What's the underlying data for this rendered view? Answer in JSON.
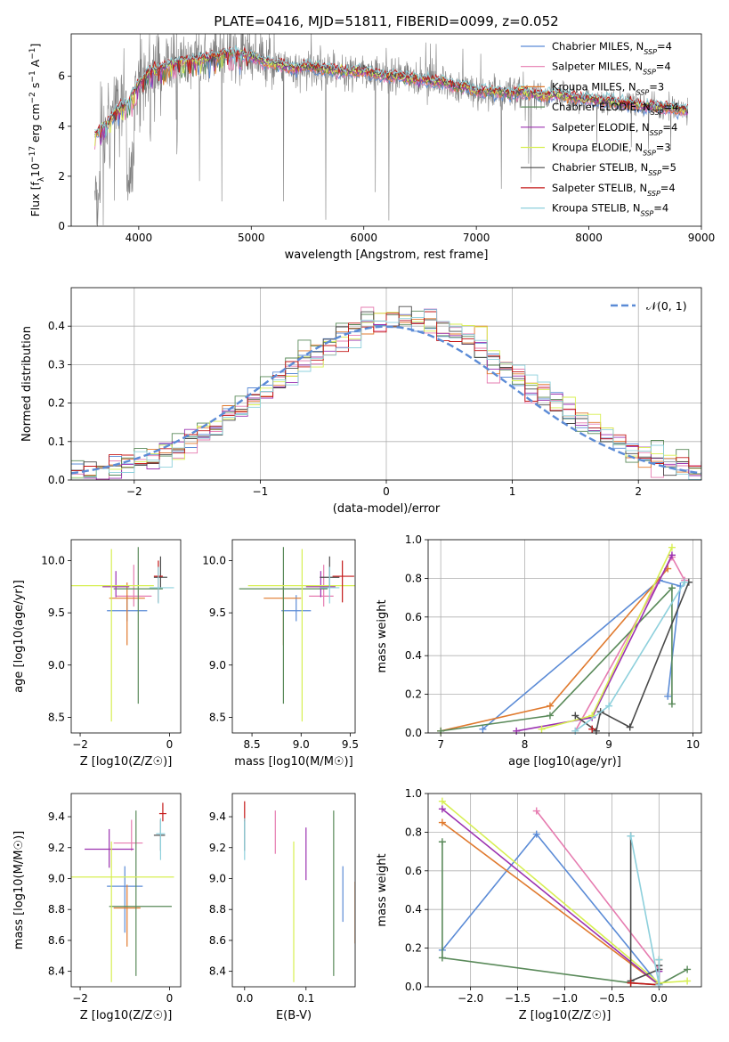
{
  "figure_title": "PLATE=0416, MJD=51811, FIBERID=0099, z=0.052",
  "colors": {
    "Chabrier MILES": "#5b8bd6",
    "Salpeter MILES": "#e67cb0",
    "Kroupa MILES": "#e07a2e",
    "Chabrier ELODIE": "#5a8a5a",
    "Salpeter ELODIE": "#9b32b0",
    "Kroupa ELODIE": "#d7ef52",
    "Chabrier STELIB": "#4a4a4a",
    "Salpeter STELIB": "#c41818",
    "Kroupa STELIB": "#8ed0dc"
  },
  "chart_data": [
    {
      "id": "spectrum",
      "type": "line",
      "title": "PLATE=0416, MJD=51811, FIBERID=0099, z=0.052",
      "xlabel": "wavelength [Angstrom, rest frame]",
      "ylabel": "Flux [f_λ10^-17 erg cm^-2 s^-1 A^-1]",
      "xlim": [
        3400,
        9000
      ],
      "ylim": [
        0,
        7.7
      ],
      "xticks": [
        4000,
        5000,
        6000,
        7000,
        8000,
        9000
      ],
      "yticks": [
        0,
        2,
        4,
        6
      ],
      "legend_position": "top-right",
      "legend": [
        {
          "label": "Chabrier MILES",
          "sub": "SSP",
          "n": "=4"
        },
        {
          "label": "Salpeter MILES",
          "sub": "SSP",
          "n": "=4"
        },
        {
          "label": "Kroupa MILES",
          "sub": "SSP",
          "n": "=3"
        },
        {
          "label": "Chabrier ELODIE",
          "sub": "SSP",
          "n": "=4"
        },
        {
          "label": "Salpeter ELODIE",
          "sub": "SSP",
          "n": "=4"
        },
        {
          "label": "Kroupa ELODIE",
          "sub": "SSP",
          "n": "=3"
        },
        {
          "label": "Chabrier STELIB",
          "sub": "SSP",
          "n": "=5"
        },
        {
          "label": "Salpeter STELIB",
          "sub": "SSP",
          "n": "=4"
        },
        {
          "label": "Kroupa STELIB",
          "sub": "SSP",
          "n": "=4"
        }
      ],
      "continuum_x": [
        3610,
        3700,
        3800,
        3900,
        4000,
        4100,
        4200,
        4300,
        4400,
        4500,
        4600,
        4700,
        4800,
        4900,
        5000,
        5100,
        5200,
        5300,
        5400,
        5500,
        5600,
        5700,
        5800,
        5900,
        6000,
        6100,
        6200,
        6300,
        6400,
        6500,
        6600,
        6700,
        6800,
        6900,
        7000,
        7100,
        7200,
        7300,
        7400,
        7500,
        7600,
        7700,
        7800,
        7900,
        8000,
        8100,
        8200,
        8300,
        8400,
        8500,
        8600,
        8700,
        8800,
        8900
      ],
      "continuum_y": [
        3.7,
        4.0,
        4.6,
        4.9,
        5.7,
        6.2,
        6.3,
        6.5,
        6.6,
        6.6,
        6.7,
        6.8,
        6.9,
        6.9,
        6.8,
        6.6,
        6.5,
        6.4,
        6.3,
        6.4,
        6.3,
        6.3,
        6.2,
        6.2,
        6.2,
        6.1,
        6.0,
        6.0,
        5.9,
        5.9,
        5.8,
        5.8,
        5.6,
        5.6,
        5.4,
        5.4,
        5.4,
        5.3,
        5.4,
        5.3,
        5.2,
        5.3,
        5.2,
        5.1,
        5.1,
        5.0,
        5.0,
        4.9,
        4.9,
        4.8,
        4.8,
        4.7,
        4.7,
        4.6
      ]
    },
    {
      "id": "residuals",
      "type": "line",
      "xlabel": "(data-model)/error",
      "ylabel": "Normed distribution",
      "xlim": [
        -2.5,
        2.5
      ],
      "ylim": [
        0,
        0.5
      ],
      "xticks": [
        -2,
        -1,
        0,
        1,
        2
      ],
      "yticks": [
        0.0,
        0.1,
        0.2,
        0.3,
        0.4
      ],
      "grid": true,
      "legend_position": "top-right",
      "legend": [
        {
          "label": "𝒩(0, 1)"
        }
      ],
      "series_style": "step histogram, one per model, bin width 0.1"
    },
    {
      "id": "age-vs-z",
      "type": "scatter",
      "xlabel": "Z [log10(Z/Z☉)]",
      "ylabel": "age  [log10(age/yr)]",
      "xlim": [
        -2.2,
        0.25
      ],
      "ylim": [
        8.35,
        10.2
      ],
      "xticks": [
        -2,
        0
      ],
      "yticks": [
        8.5,
        9.0,
        9.5,
        10.0
      ],
      "points": [
        {
          "model": "Chabrier MILES",
          "x": -0.95,
          "y": 9.52,
          "xerr": [
            0.45,
            0.45
          ],
          "yerr": [
            0.1,
            0.15
          ]
        },
        {
          "model": "Salpeter MILES",
          "x": -0.8,
          "y": 9.66,
          "xerr": [
            0.4,
            0.4
          ],
          "yerr": [
            0.1,
            0.3
          ]
        },
        {
          "model": "Kroupa MILES",
          "x": -0.95,
          "y": 9.64,
          "xerr": [
            0.4,
            0.4
          ],
          "yerr": [
            0.45,
            0.15
          ]
        },
        {
          "model": "Chabrier ELODIE",
          "x": -0.7,
          "y": 9.73,
          "xerr": [
            0.55,
            0.55
          ],
          "yerr": [
            1.1,
            0.4
          ]
        },
        {
          "model": "Salpeter ELODIE",
          "x": -1.2,
          "y": 9.75,
          "xerr": [
            0.3,
            0.3
          ],
          "yerr": [
            0.1,
            0.15
          ]
        },
        {
          "model": "Kroupa ELODIE",
          "x": -1.3,
          "y": 9.76,
          "xerr": [
            0.95,
            0.95
          ],
          "yerr": [
            1.3,
            0.35
          ]
        },
        {
          "model": "Chabrier STELIB",
          "x": -0.2,
          "y": 9.84,
          "xerr": [
            0.15,
            0.15
          ],
          "yerr": [
            0.1,
            0.2
          ]
        },
        {
          "model": "Salpeter STELIB",
          "x": -0.25,
          "y": 9.85,
          "xerr": [
            0.1,
            0.1
          ],
          "yerr": [
            0.25,
            0.15
          ]
        },
        {
          "model": "Kroupa STELIB",
          "x": -0.25,
          "y": 9.74,
          "xerr": [
            0.2,
            0.35
          ],
          "yerr": [
            0.15,
            0.2
          ]
        }
      ]
    },
    {
      "id": "age-vs-mass",
      "type": "scatter",
      "xlabel": "mass [log10(M/M☉)]",
      "xlim": [
        8.3,
        9.55
      ],
      "ylim": [
        8.35,
        10.2
      ],
      "xticks": [
        8.5,
        9.0,
        9.5
      ],
      "yticks": [
        8.5,
        9.0,
        9.5,
        10.0
      ],
      "points": [
        {
          "model": "Chabrier MILES",
          "x": 8.95,
          "y": 9.52,
          "xerr": [
            0.15,
            0.15
          ],
          "yerr": [
            0.1,
            0.15
          ]
        },
        {
          "model": "Salpeter MILES",
          "x": 9.23,
          "y": 9.66,
          "xerr": [
            0.15,
            0.1
          ],
          "yerr": [
            0.1,
            0.3
          ]
        },
        {
          "model": "Kroupa MILES",
          "x": 8.82,
          "y": 9.64,
          "xerr": [
            0.2,
            0.18
          ],
          "yerr": [
            0.45,
            0.15
          ]
        },
        {
          "model": "Chabrier ELODIE",
          "x": 8.82,
          "y": 9.73,
          "xerr": [
            0.45,
            0.45
          ],
          "yerr": [
            1.1,
            0.4
          ]
        },
        {
          "model": "Salpeter ELODIE",
          "x": 9.2,
          "y": 9.75,
          "xerr": [
            0.15,
            0.15
          ],
          "yerr": [
            0.1,
            0.15
          ]
        },
        {
          "model": "Kroupa ELODIE",
          "x": 9.01,
          "y": 9.76,
          "xerr": [
            0.55,
            0.55
          ],
          "yerr": [
            1.3,
            0.35
          ]
        },
        {
          "model": "Chabrier STELIB",
          "x": 9.29,
          "y": 9.84,
          "xerr": [
            0.1,
            0.1
          ],
          "yerr": [
            0.1,
            0.2
          ]
        },
        {
          "model": "Salpeter STELIB",
          "x": 9.42,
          "y": 9.85,
          "xerr": [
            0.1,
            0.12
          ],
          "yerr": [
            0.25,
            0.15
          ]
        },
        {
          "model": "Kroupa STELIB",
          "x": 9.29,
          "y": 9.74,
          "xerr": [
            0.1,
            0.1
          ],
          "yerr": [
            0.15,
            0.2
          ]
        }
      ]
    },
    {
      "id": "weight-vs-age",
      "type": "line",
      "xlabel": "age  [log10(age/yr)]",
      "ylabel": "mass weight",
      "xlim": [
        6.85,
        10.1
      ],
      "ylim": [
        0,
        1.0
      ],
      "xticks": [
        7,
        8,
        9,
        10
      ],
      "yticks": [
        0.0,
        0.2,
        0.4,
        0.6,
        0.8,
        1.0
      ],
      "grid": true,
      "series": [
        {
          "name": "Chabrier MILES",
          "x": [
            7.5,
            9.6,
            9.85,
            9.7
          ],
          "y": [
            0.02,
            0.79,
            0.76,
            0.19
          ]
        },
        {
          "name": "Salpeter MILES",
          "x": [
            8.6,
            9.75,
            9.9
          ],
          "y": [
            0.01,
            0.91,
            0.79
          ]
        },
        {
          "name": "Kroupa MILES",
          "x": [
            7.0,
            8.3,
            9.7
          ],
          "y": [
            0.01,
            0.14,
            0.85
          ]
        },
        {
          "name": "Chabrier ELODIE",
          "x": [
            7.0,
            8.3,
            9.75,
            9.75
          ],
          "y": [
            0.01,
            0.09,
            0.75,
            0.15
          ]
        },
        {
          "name": "Salpeter ELODIE",
          "x": [
            7.9,
            8.8,
            9.75
          ],
          "y": [
            0.01,
            0.08,
            0.92
          ]
        },
        {
          "name": "Kroupa ELODIE",
          "x": [
            8.2,
            8.8,
            9.75
          ],
          "y": [
            0.02,
            0.09,
            0.96
          ]
        },
        {
          "name": "Chabrier STELIB",
          "x": [
            8.6,
            8.85,
            8.9,
            9.25,
            9.95
          ],
          "y": [
            0.09,
            0.01,
            0.11,
            0.03,
            0.78
          ]
        },
        {
          "name": "Salpeter STELIB",
          "x": [
            8.8
          ],
          "y": [
            0.02
          ]
        },
        {
          "name": "Kroupa STELIB",
          "x": [
            8.6,
            9.0,
            9.9
          ],
          "y": [
            0.01,
            0.14,
            0.78
          ]
        }
      ]
    },
    {
      "id": "mass-vs-z",
      "type": "scatter",
      "xlabel": "Z [log10(Z/Z☉)]",
      "ylabel": "mass [log10(M/M☉)]",
      "xlim": [
        -2.2,
        0.25
      ],
      "ylim": [
        8.3,
        9.55
      ],
      "xticks": [
        -2,
        0
      ],
      "yticks": [
        8.4,
        8.6,
        8.8,
        9.0,
        9.2,
        9.4
      ],
      "points": [
        {
          "model": "Chabrier MILES",
          "x": -1.0,
          "y": 8.95,
          "xerr": [
            0.4,
            0.4
          ],
          "yerr": [
            0.3,
            0.13
          ]
        },
        {
          "model": "Salpeter MILES",
          "x": -0.85,
          "y": 9.23,
          "xerr": [
            0.4,
            0.25
          ],
          "yerr": [
            0.05,
            0.15
          ]
        },
        {
          "model": "Kroupa MILES",
          "x": -0.95,
          "y": 8.81,
          "xerr": [
            0.3,
            0.3
          ],
          "yerr": [
            0.25,
            0.15
          ]
        },
        {
          "model": "Chabrier ELODIE",
          "x": -0.75,
          "y": 8.82,
          "xerr": [
            0.6,
            0.8
          ],
          "yerr": [
            0.45,
            0.62
          ]
        },
        {
          "model": "Salpeter ELODIE",
          "x": -1.35,
          "y": 9.19,
          "xerr": [
            0.55,
            0.55
          ],
          "yerr": [
            0.12,
            0.13
          ]
        },
        {
          "model": "Kroupa ELODIE",
          "x": -1.3,
          "y": 9.01,
          "xerr": [
            0.95,
            1.4
          ],
          "yerr": [
            0.68,
            0.23
          ]
        },
        {
          "model": "Chabrier STELIB",
          "x": -0.2,
          "y": 9.28,
          "xerr": [
            0.15,
            0.1
          ],
          "yerr": [
            0.1,
            0.1
          ]
        },
        {
          "model": "Salpeter STELIB",
          "x": -0.15,
          "y": 9.42,
          "xerr": [
            0.08,
            0.08
          ],
          "yerr": [
            0.05,
            0.07
          ]
        },
        {
          "model": "Kroupa STELIB",
          "x": -0.2,
          "y": 9.29,
          "xerr": [
            0.1,
            0.1
          ],
          "yerr": [
            0.17,
            0.1
          ]
        }
      ]
    },
    {
      "id": "mass-vs-ebv",
      "type": "scatter",
      "xlabel": "E(B-V)",
      "xlim": [
        -0.02,
        0.18
      ],
      "ylim": [
        8.3,
        9.55
      ],
      "xticks": [
        0.0,
        0.1
      ],
      "yticks": [
        8.4,
        8.6,
        8.8,
        9.0,
        9.2,
        9.4
      ],
      "points": [
        {
          "model": "Chabrier MILES",
          "x": 0.16,
          "y": 8.95,
          "xerr": [
            0,
            0
          ],
          "yerr": [
            0.23,
            0.13
          ]
        },
        {
          "model": "Salpeter MILES",
          "x": 0.05,
          "y": 9.23,
          "xerr": [
            0,
            0
          ],
          "yerr": [
            0.07,
            0.21
          ]
        },
        {
          "model": "Kroupa MILES",
          "x": 0.18,
          "y": 8.81,
          "xerr": [
            0,
            0
          ],
          "yerr": [
            0.23,
            0.17
          ]
        },
        {
          "model": "Chabrier ELODIE",
          "x": 0.145,
          "y": 8.82,
          "xerr": [
            0,
            0
          ],
          "yerr": [
            0.45,
            0.62
          ]
        },
        {
          "model": "Salpeter ELODIE",
          "x": 0.1,
          "y": 9.19,
          "xerr": [
            0,
            0
          ],
          "yerr": [
            0.2,
            0.14
          ]
        },
        {
          "model": "Kroupa ELODIE",
          "x": 0.08,
          "y": 9.01,
          "xerr": [
            0,
            0
          ],
          "yerr": [
            0.68,
            0.23
          ]
        },
        {
          "model": "Chabrier STELIB",
          "x": 0.0,
          "y": 9.28,
          "xerr": [
            0,
            0
          ],
          "yerr": [
            0.1,
            0.1
          ]
        },
        {
          "model": "Salpeter STELIB",
          "x": 0.0,
          "y": 9.42,
          "xerr": [
            0,
            0
          ],
          "yerr": [
            0.05,
            0.08
          ]
        },
        {
          "model": "Kroupa STELIB",
          "x": 0.0,
          "y": 9.29,
          "xerr": [
            0,
            0
          ],
          "yerr": [
            0.17,
            0.1
          ]
        }
      ]
    },
    {
      "id": "weight-vs-z",
      "type": "line",
      "xlabel": "Z [log10(Z/Z☉)]",
      "ylabel": "mass weight",
      "xlim": [
        -2.45,
        0.45
      ],
      "ylim": [
        0,
        1.0
      ],
      "xticks": [
        -2.0,
        -1.5,
        -1.0,
        -0.5,
        0.0
      ],
      "yticks": [
        0.0,
        0.2,
        0.4,
        0.6,
        0.8,
        1.0
      ],
      "grid": true,
      "series": [
        {
          "name": "Chabrier MILES",
          "x": [
            -2.3,
            -1.3,
            0.0
          ],
          "y": [
            0.19,
            0.79,
            0.01
          ]
        },
        {
          "name": "Salpeter MILES",
          "x": [
            -1.3,
            0.0,
            0.0
          ],
          "y": [
            0.91,
            0.09,
            0.01
          ]
        },
        {
          "name": "Kroupa MILES",
          "x": [
            -2.3,
            0.0,
            0.0
          ],
          "y": [
            0.85,
            0.01,
            0.14
          ]
        },
        {
          "name": "Chabrier ELODIE",
          "x": [
            -2.3,
            -2.3,
            -0.3,
            0.0,
            0.3
          ],
          "y": [
            0.75,
            0.15,
            0.02,
            0.01,
            0.09
          ]
        },
        {
          "name": "Salpeter ELODIE",
          "x": [
            -2.3,
            0.0,
            0.0
          ],
          "y": [
            0.92,
            0.01,
            0.08
          ]
        },
        {
          "name": "Kroupa ELODIE",
          "x": [
            -2.3,
            0.0,
            0.3
          ],
          "y": [
            0.96,
            0.02,
            0.03
          ]
        },
        {
          "name": "Chabrier STELIB",
          "x": [
            -0.3,
            -0.3,
            0.0,
            0.0
          ],
          "y": [
            0.78,
            0.03,
            0.09,
            0.11
          ]
        },
        {
          "name": "Salpeter STELIB",
          "x": [
            -0.3,
            0.0
          ],
          "y": [
            0.02,
            0.01
          ]
        },
        {
          "name": "Kroupa STELIB",
          "x": [
            -0.3,
            0.0,
            0.0
          ],
          "y": [
            0.78,
            0.01,
            0.14
          ]
        }
      ]
    }
  ]
}
